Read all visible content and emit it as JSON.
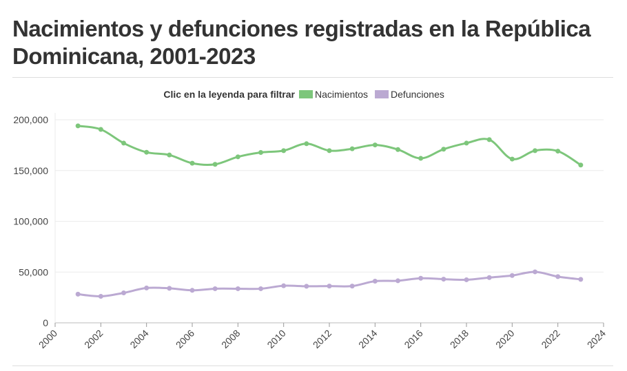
{
  "chart_data": {
    "type": "line",
    "title": "Nacimientos y defunciones registradas en la República Dominicana, 2001-2023",
    "legend_hint": "Clic en la leyenda para filtrar",
    "legend_placement": "top-center",
    "grid": true,
    "xlim": [
      2000,
      2024
    ],
    "ylim": [
      0,
      200000
    ],
    "x_ticks": [
      2000,
      2002,
      2004,
      2006,
      2008,
      2010,
      2012,
      2014,
      2016,
      2018,
      2020,
      2022,
      2024
    ],
    "y_ticks": [
      0,
      50000,
      100000,
      150000,
      200000
    ],
    "y_tick_labels": [
      "0",
      "50,000",
      "100,000",
      "150,000",
      "200,000"
    ],
    "x": [
      2001,
      2002,
      2003,
      2004,
      2005,
      2006,
      2007,
      2008,
      2009,
      2010,
      2011,
      2012,
      2013,
      2014,
      2015,
      2016,
      2017,
      2018,
      2019,
      2020,
      2021,
      2022,
      2023
    ],
    "series": [
      {
        "name": "Nacimientos",
        "color": "#7dc67b",
        "values": [
          194000,
          190500,
          177000,
          168000,
          165300,
          157200,
          156100,
          163500,
          167800,
          169600,
          176400,
          169600,
          171400,
          175200,
          170700,
          162000,
          171000,
          177000,
          180400,
          161300,
          169600,
          169100,
          155400
        ]
      },
      {
        "name": "Defunciones",
        "color": "#bba9d2",
        "values": [
          28200,
          26100,
          29500,
          34300,
          34000,
          32000,
          33600,
          33600,
          33600,
          36500,
          36000,
          36200,
          36200,
          41000,
          41400,
          43900,
          43000,
          42400,
          44600,
          46600,
          50200,
          45500,
          42800
        ]
      }
    ]
  }
}
